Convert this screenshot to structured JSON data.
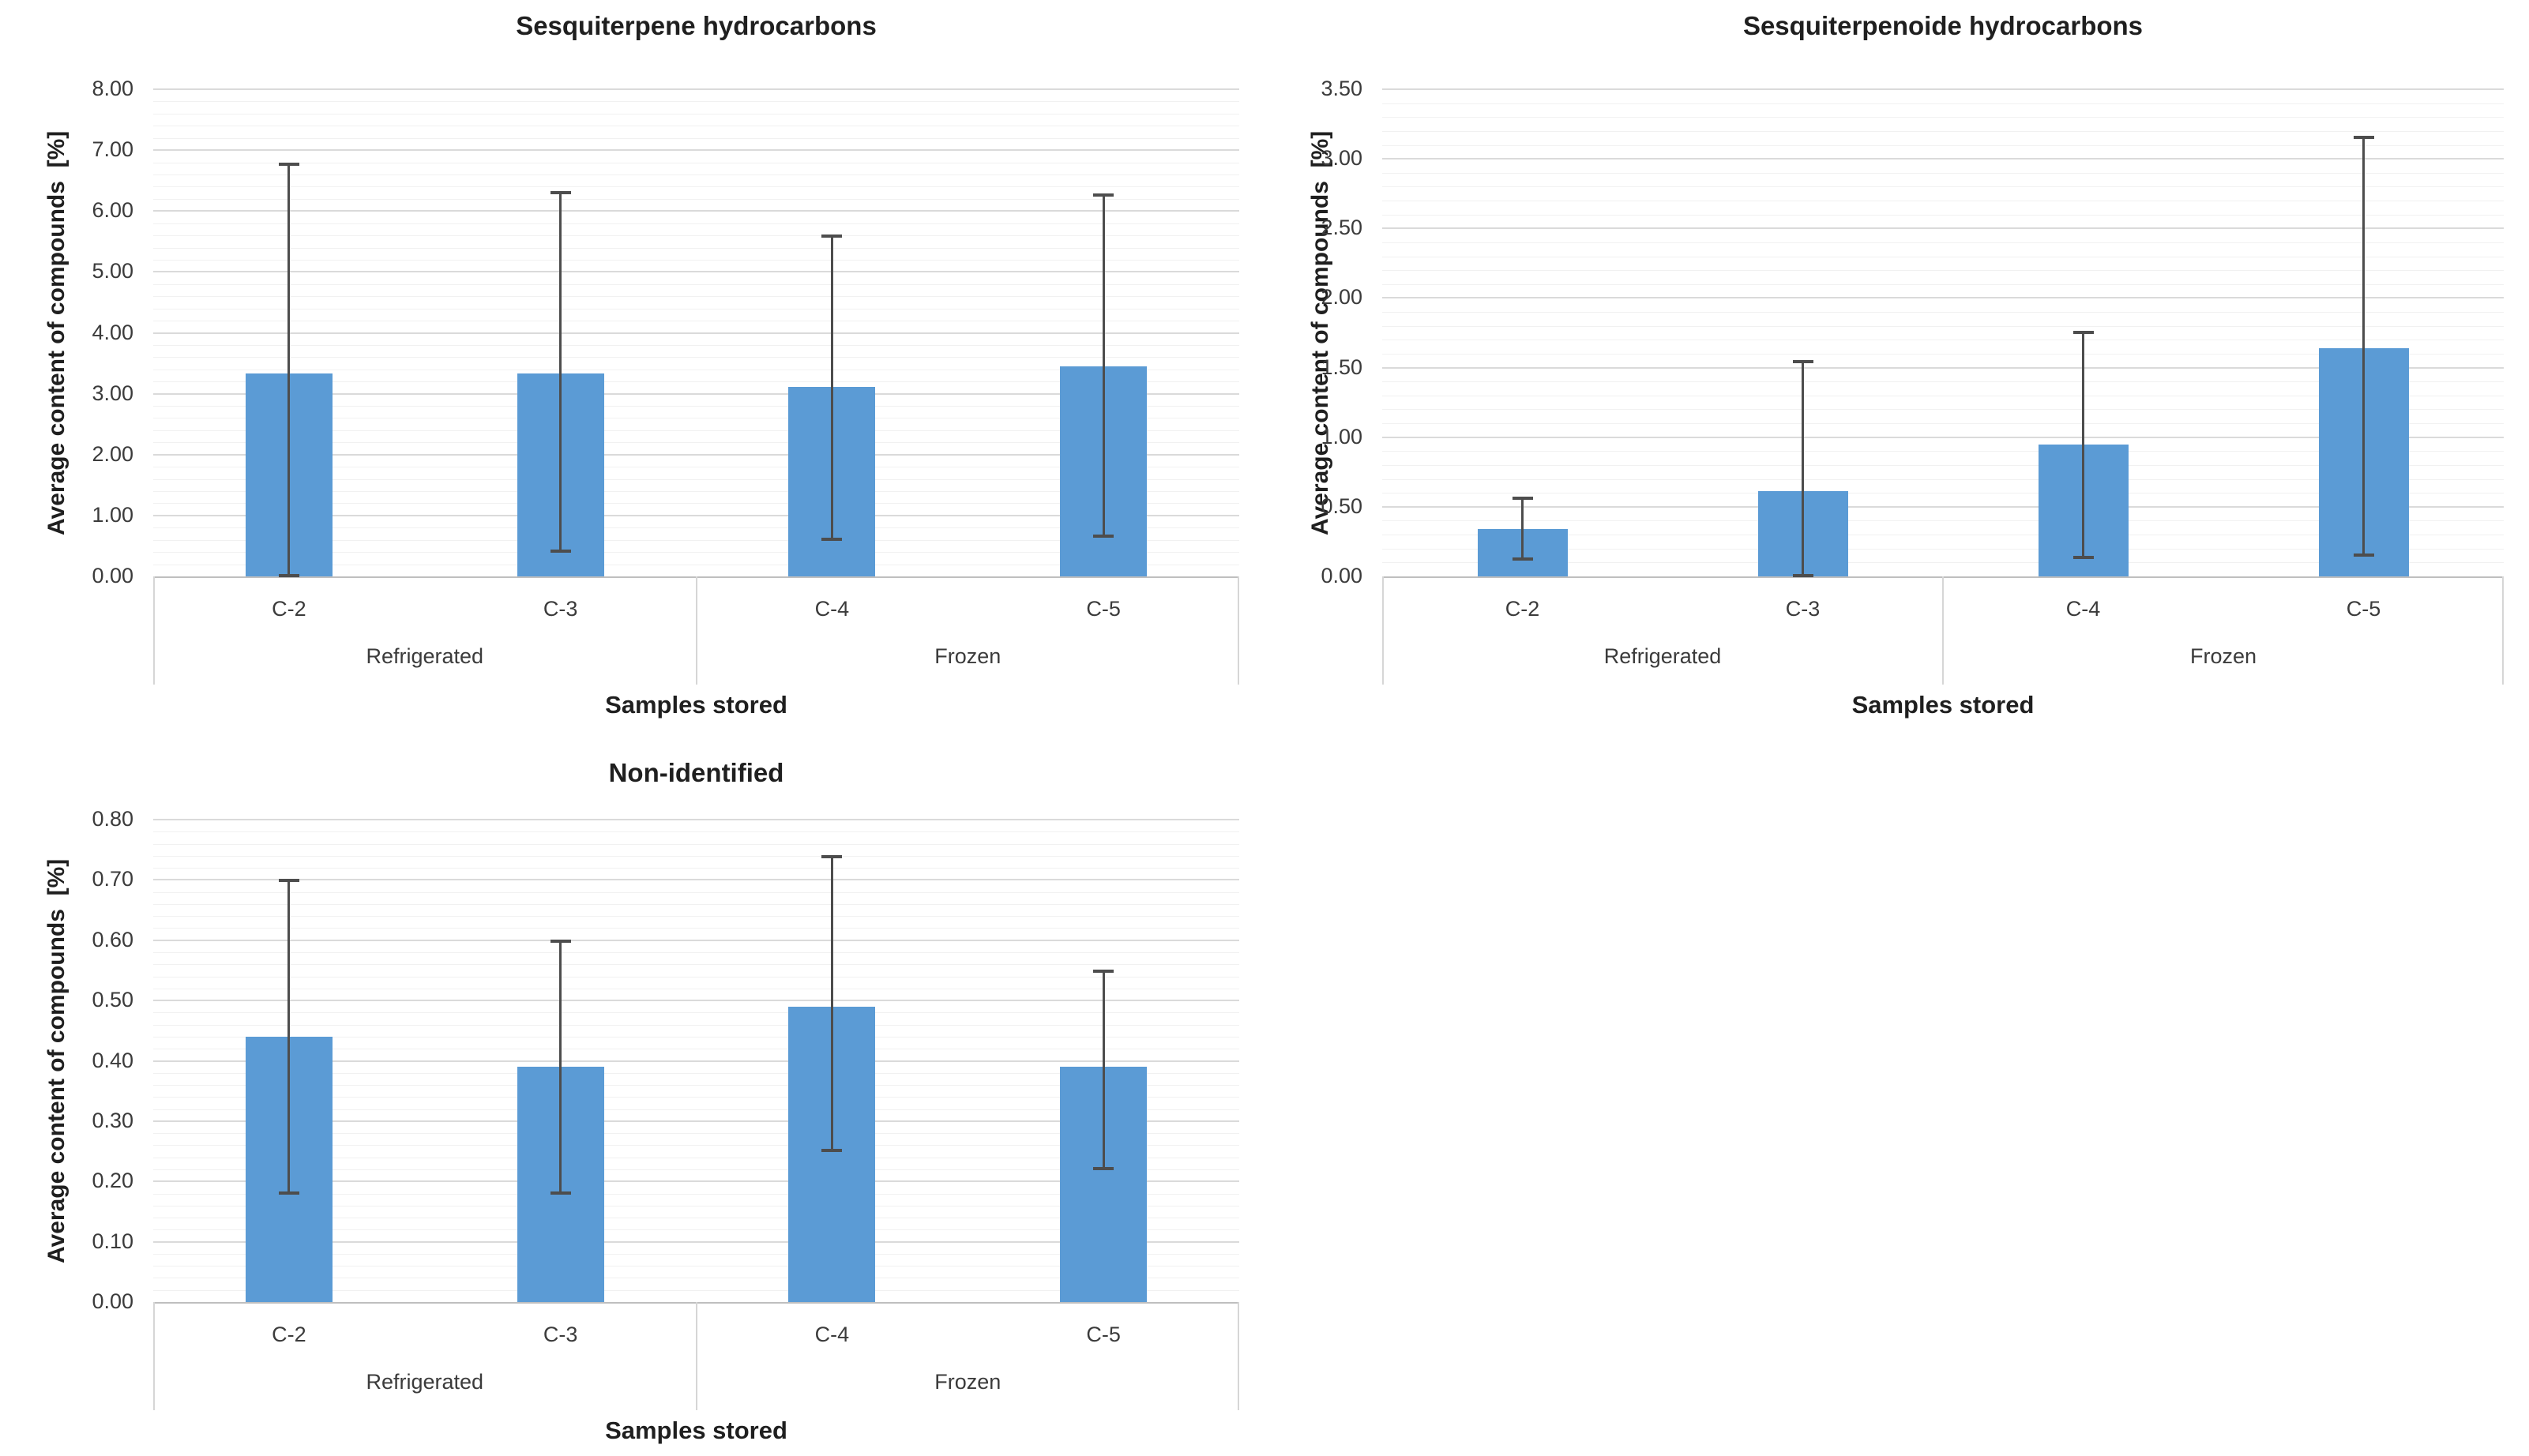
{
  "page": {
    "background": "#ffffff"
  },
  "chart_data": [
    {
      "type": "bar",
      "title": "Sesquiterpene hydrocarbons",
      "ylabel": "Average content of compounds  [%]",
      "xlabel": "Samples stored",
      "ylim": [
        0,
        8
      ],
      "y_ticks": [
        "0.00",
        "1.00",
        "2.00",
        "3.00",
        "4.00",
        "5.00",
        "6.00",
        "7.00",
        "8.00"
      ],
      "y_minor_step": 0.2,
      "grid": true,
      "legend": false,
      "categories": [
        "C-2",
        "C-3",
        "C-4",
        "C-5"
      ],
      "groups": [
        {
          "label": "Refrigerated",
          "span": 2
        },
        {
          "label": "Frozen",
          "span": 2
        }
      ],
      "series": [
        {
          "name": "Average content of compounds",
          "values": [
            3.33,
            3.33,
            3.11,
            3.45
          ],
          "error_high": [
            6.78,
            6.32,
            5.6,
            6.27
          ],
          "error_low": [
            0.0,
            0.4,
            0.6,
            0.65
          ]
        }
      ],
      "bar_color": "#5b9bd5",
      "error_color": "#4d4d4d"
    },
    {
      "type": "bar",
      "title": "Sesquiterpenoide hydrocarbons",
      "ylabel": "Average content of compounds  [%]",
      "xlabel": "Samples stored",
      "ylim": [
        0,
        3.5
      ],
      "y_ticks": [
        "0.00",
        "0.50",
        "1.00",
        "1.50",
        "2.00",
        "2.50",
        "3.00",
        "3.50"
      ],
      "y_minor_step": 0.1,
      "grid": true,
      "legend": false,
      "categories": [
        "C-2",
        "C-3",
        "C-4",
        "C-5"
      ],
      "groups": [
        {
          "label": "Refrigerated",
          "span": 2
        },
        {
          "label": "Frozen",
          "span": 2
        }
      ],
      "series": [
        {
          "name": "Average content of compounds",
          "values": [
            0.34,
            0.61,
            0.95,
            1.64
          ],
          "error_high": [
            0.57,
            1.55,
            1.76,
            3.16
          ],
          "error_low": [
            0.12,
            0.0,
            0.13,
            0.15
          ]
        }
      ],
      "bar_color": "#5b9bd5",
      "error_color": "#4d4d4d"
    },
    {
      "type": "bar",
      "title": "Non-identified",
      "ylabel": "Average content of compounds  [%]",
      "xlabel": "Samples stored",
      "ylim": [
        0,
        0.8
      ],
      "y_ticks": [
        "0.00",
        "0.10",
        "0.20",
        "0.30",
        "0.40",
        "0.50",
        "0.60",
        "0.70",
        "0.80"
      ],
      "y_minor_step": 0.02,
      "grid": true,
      "legend": false,
      "categories": [
        "C-2",
        "C-3",
        "C-4",
        "C-5"
      ],
      "groups": [
        {
          "label": "Refrigerated",
          "span": 2
        },
        {
          "label": "Frozen",
          "span": 2
        }
      ],
      "series": [
        {
          "name": "Average content of compounds",
          "values": [
            0.44,
            0.39,
            0.49,
            0.39
          ],
          "error_high": [
            0.7,
            0.6,
            0.74,
            0.55
          ],
          "error_low": [
            0.18,
            0.18,
            0.25,
            0.22
          ]
        }
      ],
      "bar_color": "#5b9bd5",
      "error_color": "#4d4d4d"
    }
  ]
}
